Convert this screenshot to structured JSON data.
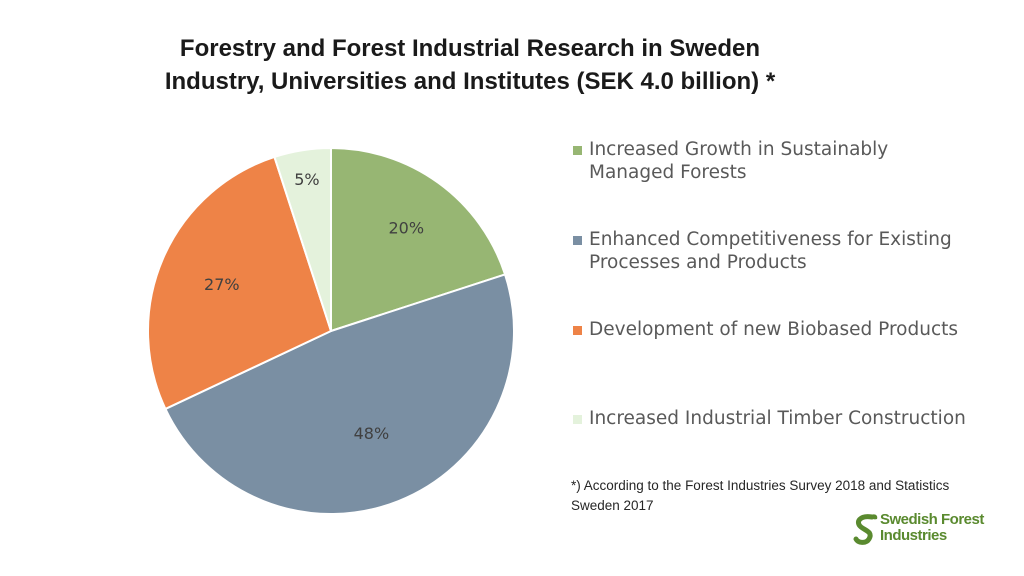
{
  "title_line1": "Forestry and Forest Industrial Research in Sweden",
  "title_line2": "Industry, Universities and Institutes (SEK 4.0 billion) *",
  "chart_data": {
    "type": "pie",
    "title": "Forestry and Forest Industrial Research in Sweden Industry, Universities and Institutes (SEK 4.0 billion) *",
    "labels": [
      "Increased Growth in Sustainably Managed Forests",
      "Enhanced Competitiveness for Existing Processes and Products",
      "Development of new Biobased Products",
      "Increased Industrial Timber Construction"
    ],
    "values": [
      20,
      48,
      27,
      5
    ],
    "data_labels": [
      "20%",
      "48%",
      "27%",
      "5%"
    ],
    "colors": [
      "#97b673",
      "#7a8fa3",
      "#ee8347",
      "#e4f2dc"
    ],
    "legend_position": "right",
    "start_angle": "12 o'clock, clockwise"
  },
  "legend": {
    "items": [
      {
        "label": "Increased Growth in Sustainably Managed Forests",
        "color": "#97b673"
      },
      {
        "label": "Enhanced Competitiveness for Existing Processes and Products",
        "color": "#7a8fa3"
      },
      {
        "label": "Development of new Biobased Products",
        "color": "#ee8347"
      },
      {
        "label": "Increased Industrial Timber Construction",
        "color": "#e4f2dc"
      }
    ]
  },
  "footnote": "*) According to the Forest Industries Survey 2018 and Statistics Sweden 2017",
  "logo": {
    "line1": "Swedish Forest",
    "line2": "Industries",
    "icon": "leaf-s-icon",
    "color": "#5a8a2f"
  }
}
